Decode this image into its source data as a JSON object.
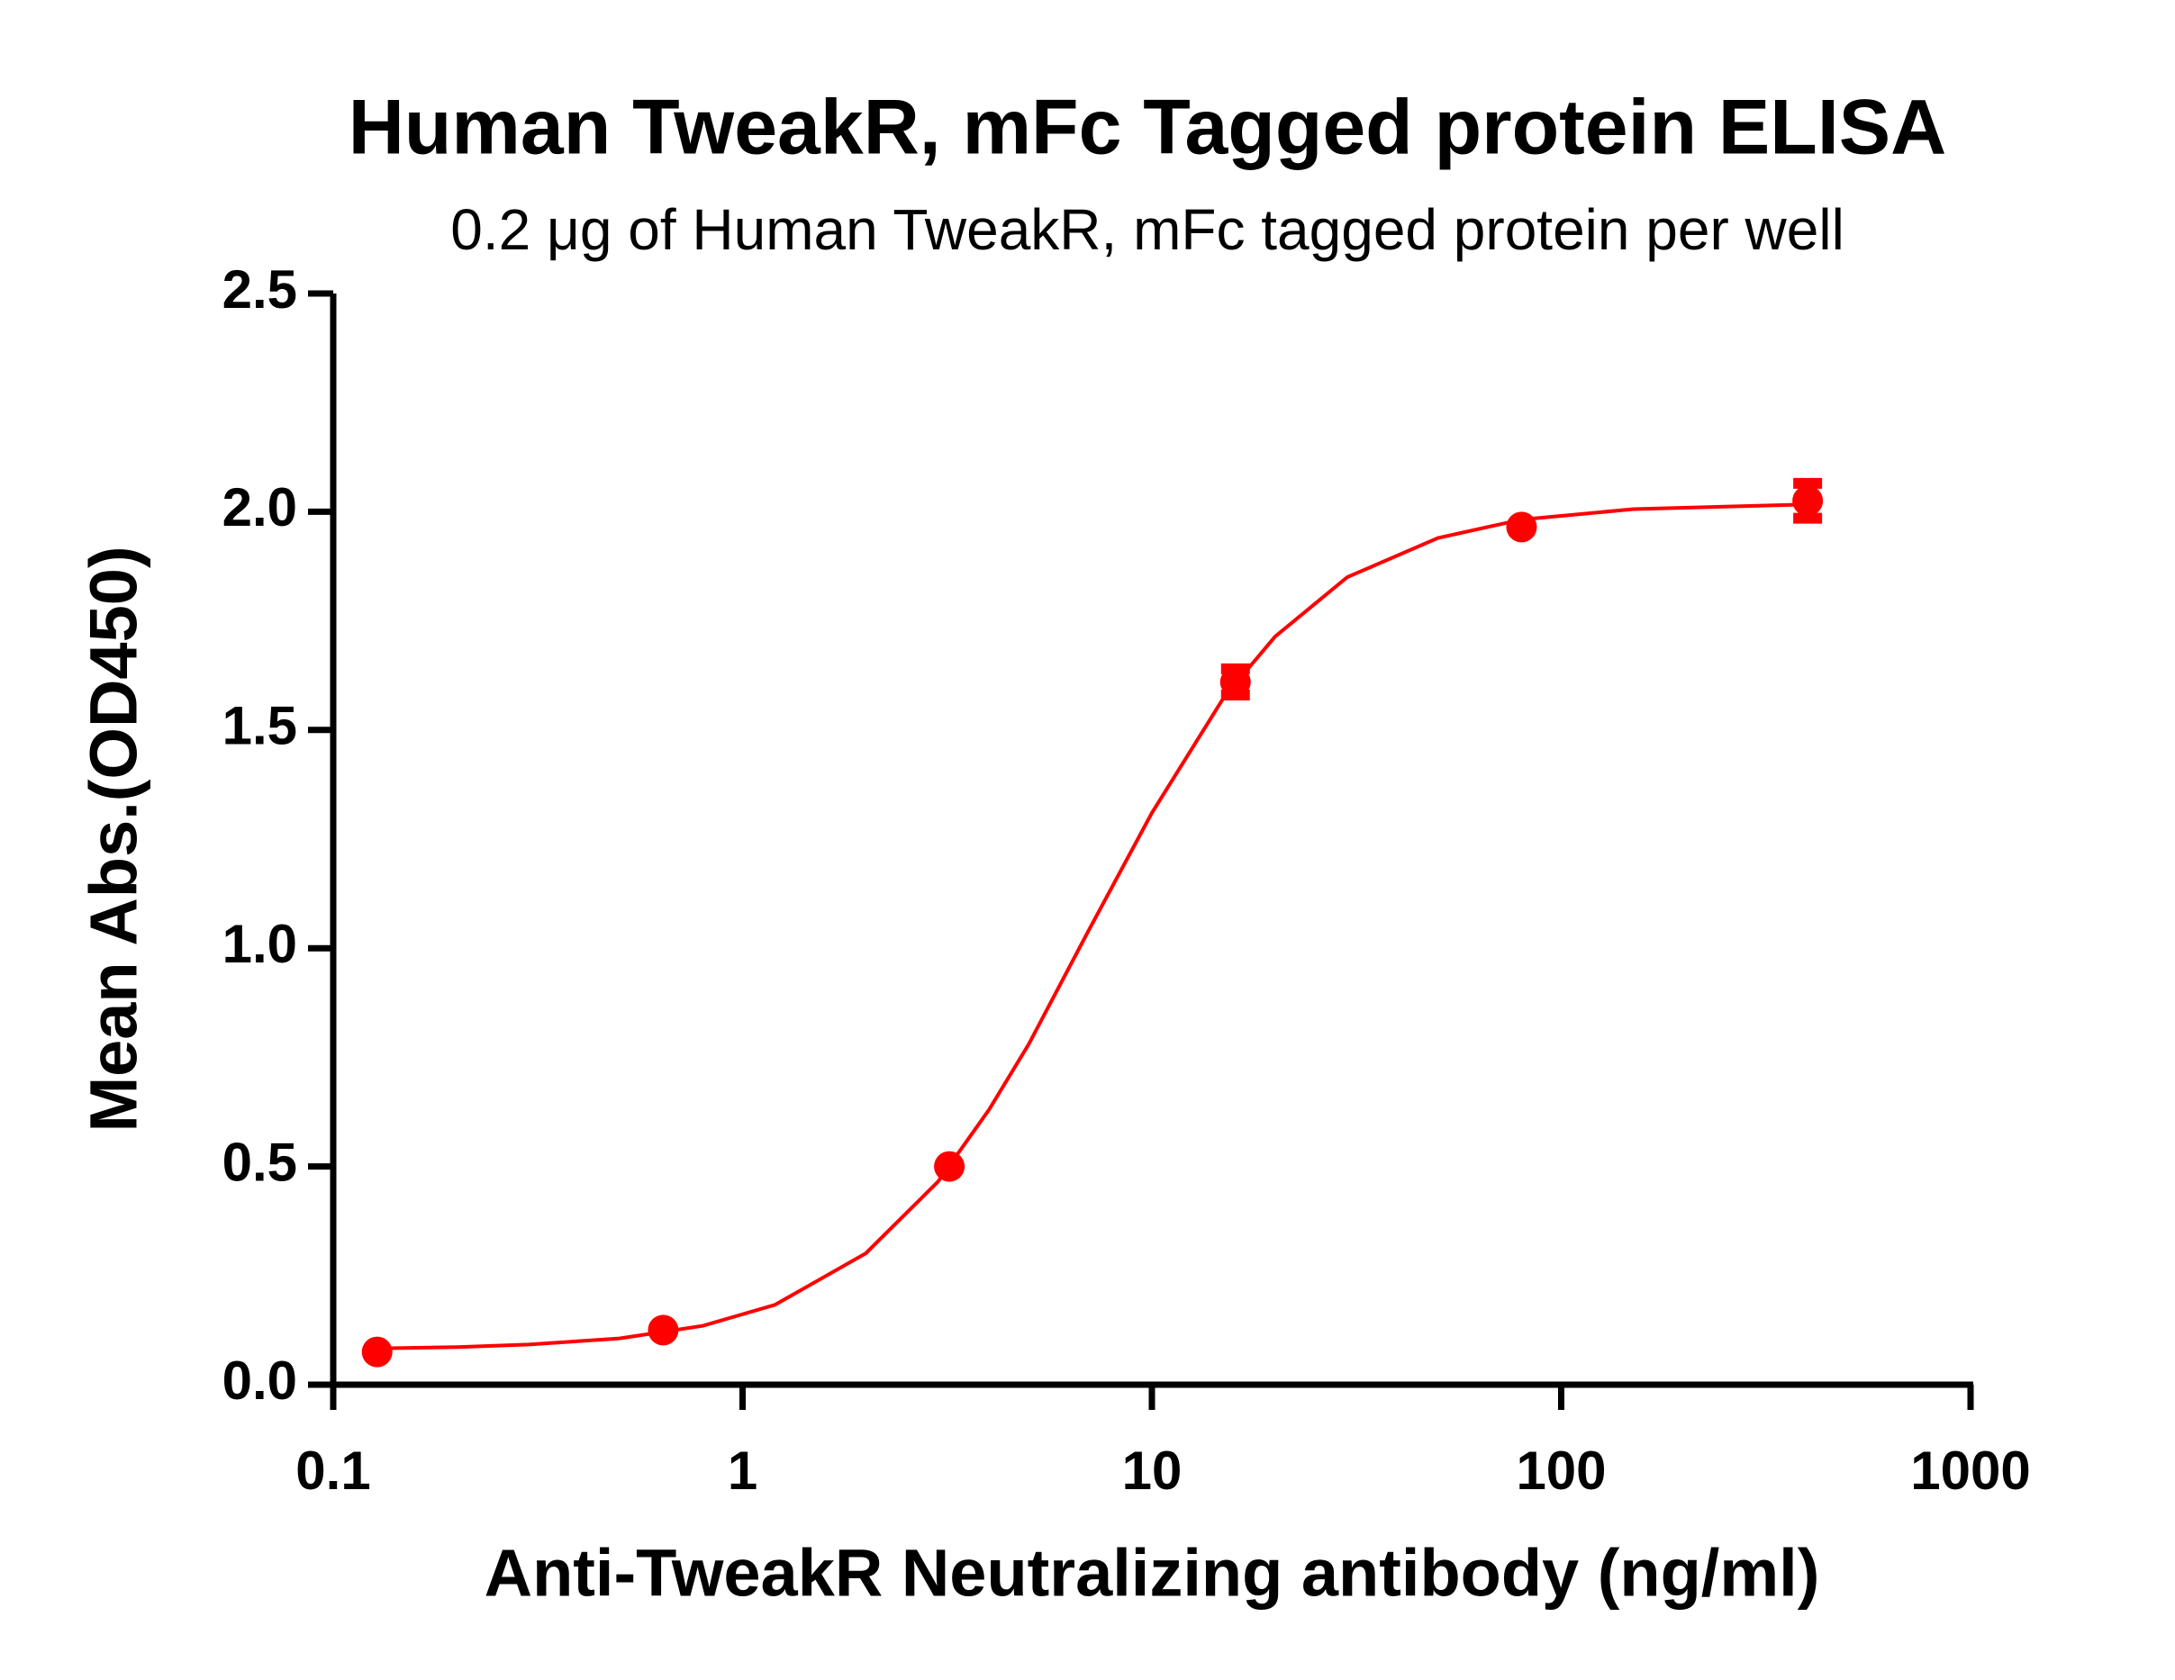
{
  "chart_data": {
    "type": "scatter",
    "title": "Human TweakR,  mFc Tagged protein ELISA",
    "subtitle": "0.2 μg of Human TweakR, mFc tagged protein per well",
    "x_label": "Anti-TweakR Neutralizing antibody (ng/ml)",
    "y_label": "Mean Abs.(OD450)",
    "x_scale": "log",
    "xlim": [
      0.1,
      1000
    ],
    "xticks": [
      0.1,
      1,
      10,
      100,
      1000
    ],
    "ylim": [
      0,
      2.5
    ],
    "yticks": [
      {
        "value": 0,
        "label": "0.0"
      },
      0.5,
      {
        "value": 1,
        "label": "1.0"
      },
      1.5,
      {
        "value": 2,
        "label": "2.0"
      },
      2.5
    ],
    "grid": false,
    "series": [
      {
        "color": "#ff0000",
        "x": [
          0.128,
          0.64,
          3.2,
          16,
          80,
          400
        ],
        "values": [
          0.075,
          0.125,
          0.5,
          1.61,
          1.965,
          2.025
        ],
        "errors": [
          null,
          null,
          null,
          0.03,
          null,
          0.04
        ]
      }
    ],
    "fit_curve": {
      "color": "#ff0000",
      "x": [
        0.128,
        0.2,
        0.3,
        0.5,
        0.8,
        1.2,
        2,
        3,
        4,
        5,
        7,
        10,
        15,
        20,
        30,
        50,
        80,
        150,
        400
      ],
      "values": [
        0.083,
        0.086,
        0.092,
        0.106,
        0.135,
        0.183,
        0.301,
        0.465,
        0.63,
        0.78,
        1.04,
        1.31,
        1.575,
        1.714,
        1.85,
        1.94,
        1.982,
        2.006,
        2.017
      ]
    }
  }
}
